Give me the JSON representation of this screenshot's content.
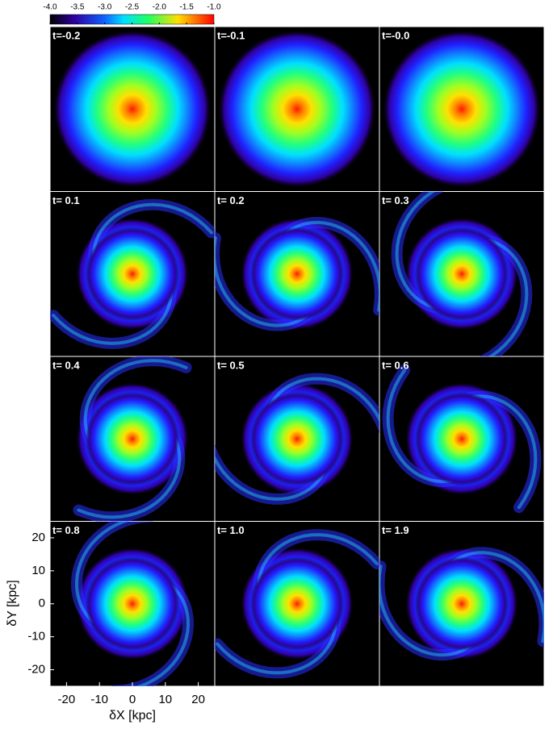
{
  "colorbar": {
    "lim": [
      -4,
      -1
    ],
    "ticks": [
      {
        "value": -4,
        "label": "-4.0"
      },
      {
        "value": -3.5,
        "label": "-3.5"
      },
      {
        "value": -3,
        "label": "-3.0"
      },
      {
        "value": -2.5,
        "label": "-2.5"
      },
      {
        "value": -2,
        "label": "-2.0"
      },
      {
        "value": -1.5,
        "label": "-1.5"
      },
      {
        "value": -1,
        "label": "-1.0"
      }
    ]
  },
  "panels": [
    {
      "label": "t=-0.2"
    },
    {
      "label": "t=-0.1"
    },
    {
      "label": "t=-0.0"
    },
    {
      "label": "t= 0.1"
    },
    {
      "label": "t= 0.2"
    },
    {
      "label": "t= 0.3"
    },
    {
      "label": "t= 0.4"
    },
    {
      "label": "t= 0.5"
    },
    {
      "label": "t= 0.6"
    },
    {
      "label": "t= 0.8"
    },
    {
      "label": "t= 1.0"
    },
    {
      "label": "t= 1.9"
    }
  ],
  "xaxis": {
    "label": "δX [kpc]",
    "lim": [
      -25,
      25
    ],
    "ticks": [
      -20,
      -10,
      0,
      10,
      20
    ]
  },
  "yaxis": {
    "label": "δY [kpc]",
    "lim": [
      -25,
      25
    ],
    "ticks": [
      -20,
      -10,
      0,
      10,
      20
    ]
  }
}
